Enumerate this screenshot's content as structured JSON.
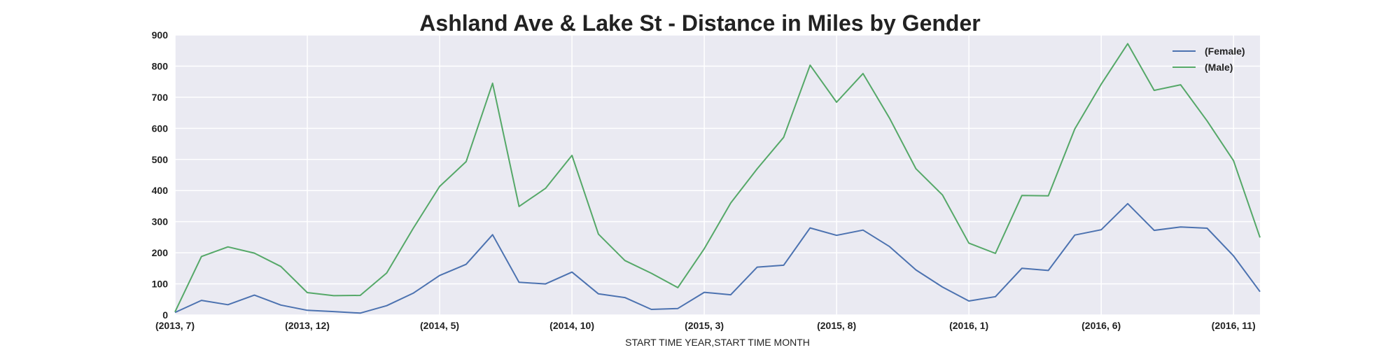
{
  "chart_data": {
    "type": "line",
    "title": "Ashland Ave & Lake St - Distance in Miles by Gender",
    "xlabel": "START TIME YEAR,START TIME MONTH",
    "ylabel": "",
    "x": [
      "(2013, 7)",
      "(2013, 8)",
      "(2013, 9)",
      "(2013, 10)",
      "(2013, 11)",
      "(2013, 12)",
      "(2014, 1)",
      "(2014, 2)",
      "(2014, 3)",
      "(2014, 4)",
      "(2014, 5)",
      "(2014, 6)",
      "(2014, 7)",
      "(2014, 8)",
      "(2014, 9)",
      "(2014, 10)",
      "(2014, 11)",
      "(2014, 12)",
      "(2015, 1)",
      "(2015, 2)",
      "(2015, 3)",
      "(2015, 4)",
      "(2015, 5)",
      "(2015, 6)",
      "(2015, 7)",
      "(2015, 8)",
      "(2015, 9)",
      "(2015, 10)",
      "(2015, 11)",
      "(2015, 12)",
      "(2016, 1)",
      "(2016, 2)",
      "(2016, 3)",
      "(2016, 4)",
      "(2016, 5)",
      "(2016, 6)",
      "(2016, 7)",
      "(2016, 8)",
      "(2016, 9)",
      "(2016, 10)",
      "(2016, 11)",
      "(2016, 12)"
    ],
    "x_tick_labels": [
      "(2013, 7)",
      "(2013, 12)",
      "(2014, 5)",
      "(2014, 10)",
      "(2015, 3)",
      "(2015, 8)",
      "(2016, 1)",
      "(2016, 6)",
      "(2016, 11)"
    ],
    "y_ticks": [
      0,
      100,
      200,
      300,
      400,
      500,
      600,
      700,
      800,
      900
    ],
    "ylim": [
      0,
      900
    ],
    "grid": true,
    "legend_position": "top-right",
    "series": [
      {
        "name": "(Female)",
        "color": "#4c72b0",
        "values": [
          8,
          47,
          33,
          64,
          32,
          15,
          11,
          6,
          30,
          70,
          127,
          163,
          258,
          105,
          100,
          138,
          68,
          56,
          18,
          21,
          73,
          65,
          154,
          160,
          280,
          256,
          273,
          220,
          145,
          90,
          45,
          59,
          150,
          143,
          257,
          274,
          358,
          272,
          283,
          279,
          190,
          75
        ]
      },
      {
        "name": "(Male)",
        "color": "#55a868",
        "values": [
          10,
          188,
          219,
          199,
          156,
          72,
          62,
          63,
          135,
          278,
          413,
          493,
          745,
          349,
          407,
          513,
          260,
          175,
          134,
          88,
          213,
          360,
          470,
          571,
          803,
          684,
          776,
          633,
          470,
          386,
          231,
          198,
          384,
          383,
          598,
          742,
          872,
          722,
          740,
          624,
          496,
          249
        ]
      }
    ]
  }
}
